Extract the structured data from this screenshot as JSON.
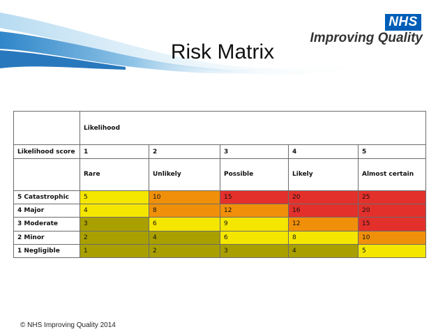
{
  "brand": {
    "logo_text": "NHS",
    "subtitle": "Improving Quality"
  },
  "title": "Risk Matrix",
  "matrix": {
    "likelihood_heading": "Likelihood",
    "score_label": "Likelihood score",
    "scores": [
      "1",
      "2",
      "3",
      "4",
      "5"
    ],
    "descriptors": [
      "Rare",
      "Unlikely",
      "Possible",
      "Likely",
      "Almost certain"
    ],
    "rows": [
      {
        "label": "5 Catastrophic",
        "values": [
          "5",
          "10",
          "15",
          "20",
          "25"
        ],
        "colors": [
          "yellow",
          "orange",
          "red",
          "red",
          "red"
        ]
      },
      {
        "label": "4 Major",
        "values": [
          "4",
          "8",
          "12",
          "16",
          "20"
        ],
        "colors": [
          "yellow",
          "orange",
          "orange",
          "red",
          "red"
        ]
      },
      {
        "label": "3 Moderate",
        "values": [
          "3",
          "6",
          "9",
          "12",
          "15"
        ],
        "colors": [
          "olive",
          "yellow",
          "yellow",
          "orange",
          "red"
        ]
      },
      {
        "label": "2 Minor",
        "values": [
          "2",
          "4",
          "6",
          "8",
          "10"
        ],
        "colors": [
          "olive",
          "olive",
          "yellow",
          "yellow",
          "orange"
        ]
      },
      {
        "label": "1 Negligible",
        "values": [
          "1",
          "2",
          "3",
          "4",
          "5"
        ],
        "colors": [
          "olive",
          "olive",
          "olive",
          "olive",
          "yellow"
        ]
      }
    ],
    "palette": {
      "yellow": "#F5E600",
      "olive": "#A9A000",
      "orange": "#F0900A",
      "red": "#E3302B"
    }
  },
  "footer": "© NHS Improving Quality 2014"
}
